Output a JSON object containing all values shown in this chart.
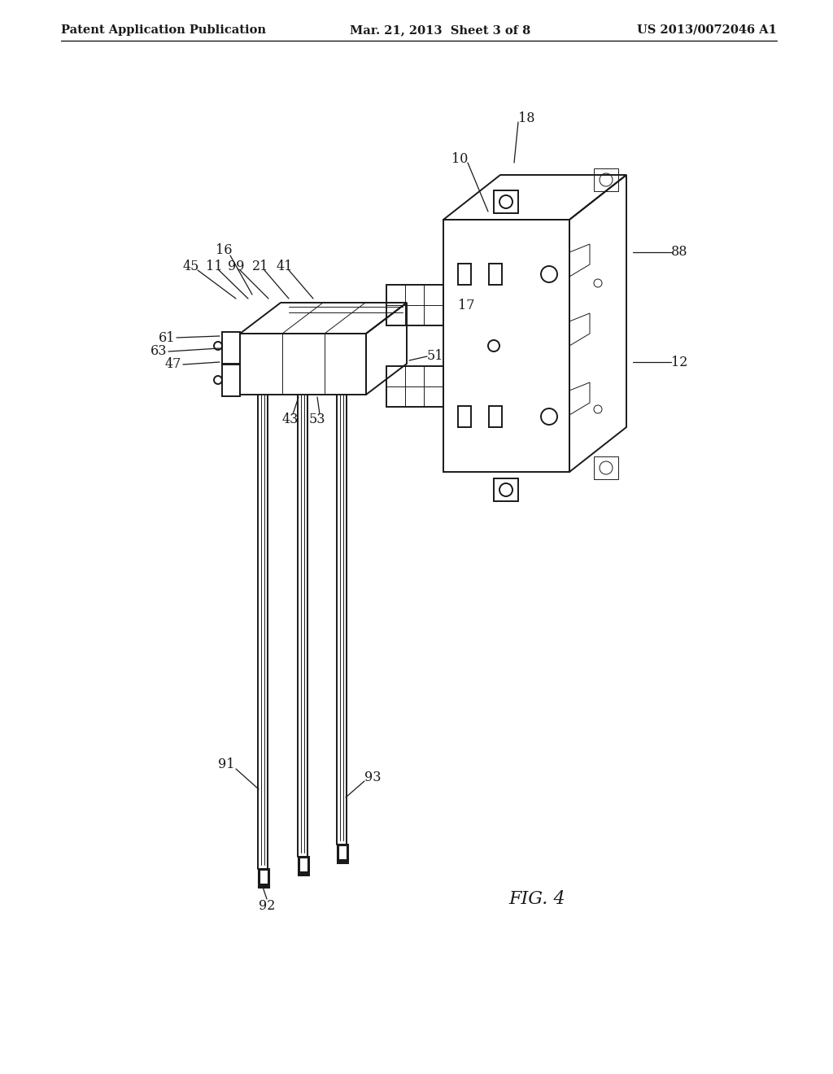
{
  "bg_color": "#ffffff",
  "line_color": "#1a1a1a",
  "header_left": "Patent Application Publication",
  "header_mid": "Mar. 21, 2013  Sheet 3 of 8",
  "header_right": "US 2013/0072046 A1",
  "fig_label": "FIG. 4",
  "lw_main": 1.4,
  "lw_thick": 2.2,
  "lw_thin": 0.7,
  "fs_header": 10.5,
  "fs_label": 11.5
}
